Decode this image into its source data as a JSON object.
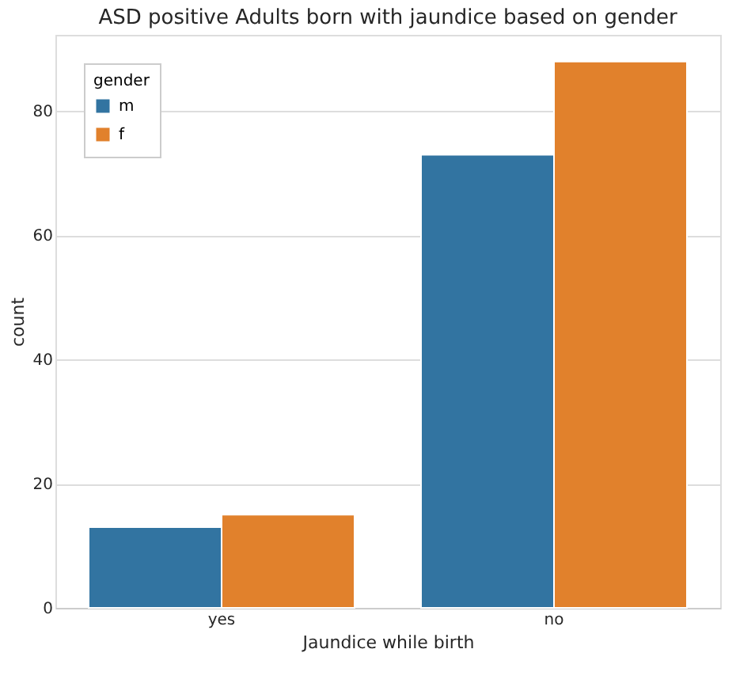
{
  "chart_data": {
    "type": "bar",
    "title": "ASD positive Adults born with jaundice based on gender",
    "xlabel": "Jaundice while birth",
    "ylabel": "count",
    "legend_title": "gender",
    "categories": [
      "yes",
      "no"
    ],
    "series": [
      {
        "name": "m",
        "color": "#3274a1",
        "values": [
          13,
          73
        ]
      },
      {
        "name": "f",
        "color": "#e1812c",
        "values": [
          15,
          88
        ]
      }
    ],
    "ylim": [
      0,
      92.3
    ],
    "yticks": [
      0,
      20,
      40,
      60,
      80
    ],
    "grid": "y",
    "legend": "top left"
  }
}
